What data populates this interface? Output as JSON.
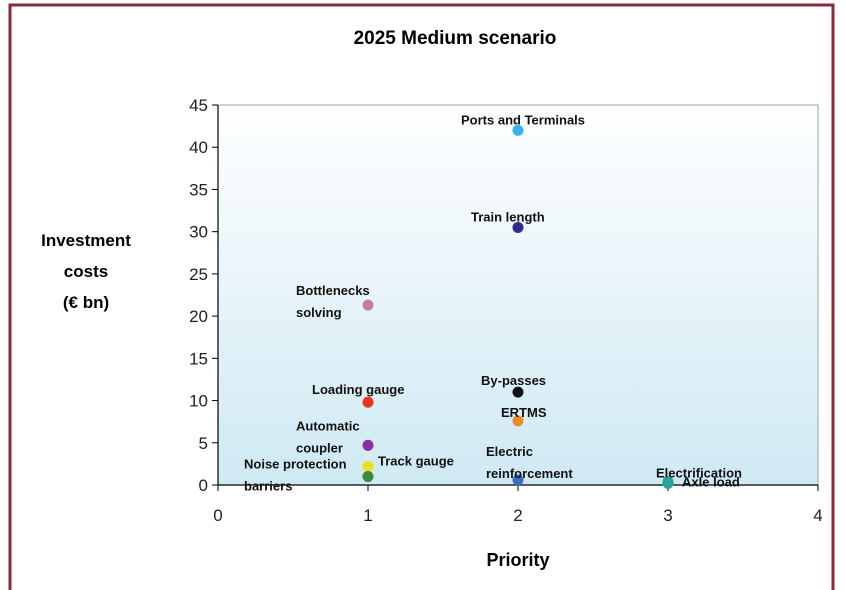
{
  "chart_data": {
    "type": "scatter",
    "title": "2025 Medium scenario",
    "xlabel": "Priority",
    "ylabel": [
      "Investment",
      "costs",
      "(€ bn)"
    ],
    "xlim": [
      0,
      4
    ],
    "ylim": [
      0,
      45
    ],
    "xticks": [
      0,
      1,
      2,
      3,
      4
    ],
    "yticks": [
      0,
      5,
      10,
      15,
      20,
      25,
      30,
      35,
      40,
      45
    ],
    "grid": false,
    "legend": "none",
    "colors": {
      "border": "#8b2a3a",
      "plot_bg_top": "#ffffff",
      "plot_bg_bottom": "#cfe9f3"
    },
    "points": [
      {
        "label": [
          "Ports and Terminals"
        ],
        "x": 2,
        "y": 42,
        "color": "#33b5ee",
        "anchor": "middle"
      },
      {
        "label": [
          "Train length"
        ],
        "x": 2,
        "y": 30.5,
        "color": "#2e2e8c",
        "anchor": "middle"
      },
      {
        "label": [
          "Bottlenecks",
          "solving"
        ],
        "x": 1,
        "y": 21.3,
        "color": "#c97aa0",
        "anchor": "end"
      },
      {
        "label": [
          "By-passes"
        ],
        "x": 2,
        "y": 11,
        "color": "#111111",
        "anchor": "middle"
      },
      {
        "label": [
          "Loading gauge"
        ],
        "x": 1,
        "y": 9.8,
        "color": "#e8341c",
        "anchor": "start"
      },
      {
        "label": [
          "ERTMS"
        ],
        "x": 2,
        "y": 7.6,
        "color": "#f08a24",
        "anchor": "middle"
      },
      {
        "label": [
          "Automatic",
          "coupler"
        ],
        "x": 1,
        "y": 4.7,
        "color": "#8a2ca6",
        "anchor": "end"
      },
      {
        "label": [
          "Track gauge"
        ],
        "x": 1,
        "y": 2.2,
        "color": "#e6e020",
        "anchor": "start"
      },
      {
        "label": [
          "Noise protection",
          "barriers"
        ],
        "x": 1,
        "y": 1.0,
        "color": "#3a8a3a",
        "anchor": "end"
      },
      {
        "label": [
          "Electric",
          "reinforcement"
        ],
        "x": 2,
        "y": 0.6,
        "color": "#3a6ec0",
        "anchor": "middle"
      },
      {
        "label": [
          "Electrification"
        ],
        "x": 3,
        "y": 0.4,
        "color": "#26a69a",
        "anchor": "middle"
      },
      {
        "label": [
          "Axle load"
        ],
        "x": 3,
        "y": 0.2,
        "color": "#2aa39a",
        "anchor": "start"
      }
    ]
  }
}
